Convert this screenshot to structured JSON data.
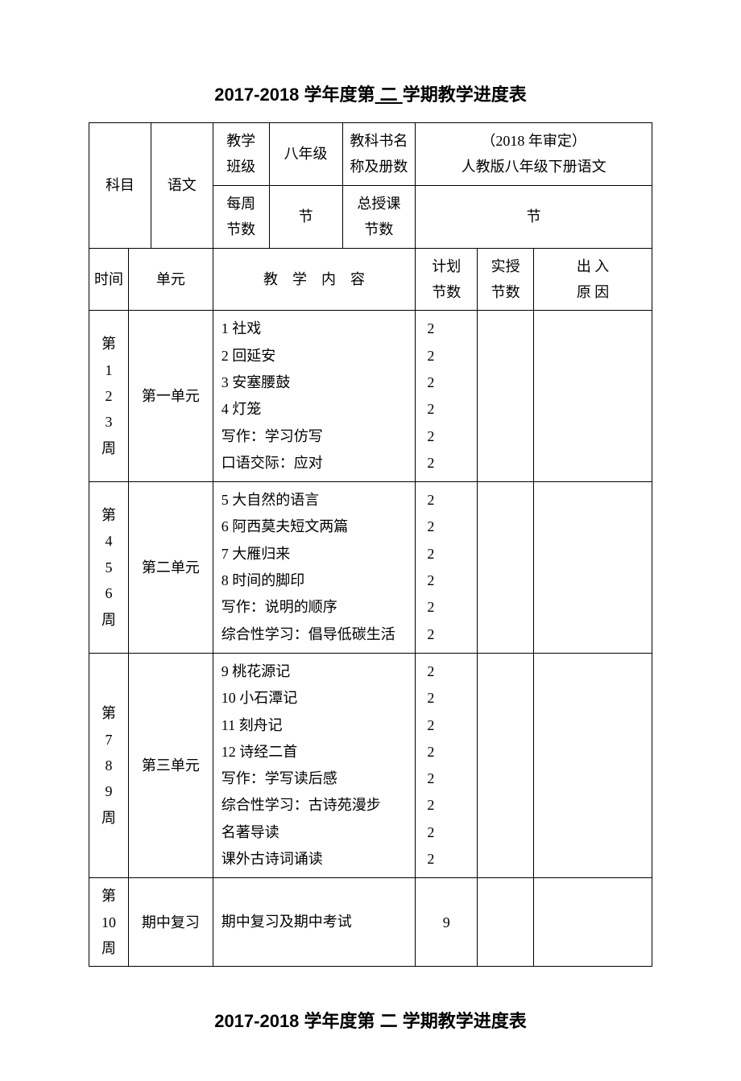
{
  "title_prefix": "2017-2018 学年度第",
  "title_underline": " 二 ",
  "title_suffix": "学期教学进度表",
  "header": {
    "subject_label": "科目",
    "subject_value": "语文",
    "class_label_l1": "教学",
    "class_label_l2": "班级",
    "class_value": "八年级",
    "book_label_l1": "教科书名",
    "book_label_l2": "称及册数",
    "book_value_l1": "（2018 年审定）",
    "book_value_l2": "人教版八年级下册语文",
    "weekly_label_l1": "每周",
    "weekly_label_l2": "节数",
    "weekly_value": "节",
    "total_label_l1": "总授课",
    "total_label_l2": "节数",
    "total_value": "节"
  },
  "subhead": {
    "time": "时间",
    "unit": "单元",
    "content": "教　学　内　容",
    "plan_l1": "计划",
    "plan_l2": "节数",
    "actual_l1": "实授",
    "actual_l2": "节数",
    "reason_l1": "出 入",
    "reason_l2": "原 因"
  },
  "rows": [
    {
      "time": [
        "第",
        "1",
        "2",
        "3",
        "周"
      ],
      "unit": "第一单元",
      "content": [
        "1 社戏",
        "2 回延安",
        "3 安塞腰鼓",
        "4 灯笼",
        "写作：学习仿写",
        "口语交际：应对"
      ],
      "plan": [
        "2",
        "2",
        "2",
        "2",
        "2",
        "2"
      ]
    },
    {
      "time": [
        "第",
        "4",
        "5",
        "6",
        "周"
      ],
      "unit": "第二单元",
      "content": [
        "5 大自然的语言",
        "6 阿西莫夫短文两篇",
        "7 大雁归来",
        "8 时间的脚印",
        "写作：说明的顺序",
        "综合性学习：倡导低碳生活"
      ],
      "plan": [
        "2",
        "2",
        "2",
        "2",
        "2",
        "2"
      ]
    },
    {
      "time": [
        "第",
        "7",
        "8",
        "9",
        "周"
      ],
      "unit": "第三单元",
      "content": [
        "9 桃花源记",
        "10 小石潭记",
        "11 刻舟记",
        "12 诗经二首",
        "写作：学写读后感",
        "综合性学习：古诗苑漫步",
        "名著导读",
        "课外古诗词诵读"
      ],
      "plan": [
        "2",
        "2",
        "2",
        "2",
        "2",
        "2",
        "2",
        "2"
      ]
    },
    {
      "time": [
        "第",
        "10",
        "周"
      ],
      "unit": "期中复习",
      "content": [
        "期中复习及期中考试"
      ],
      "plan": [
        "9"
      ]
    }
  ],
  "style": {
    "page_bg": "#ffffff",
    "text_color": "#000000",
    "border_color": "#000000",
    "title_fontsize": 22,
    "body_fontsize": 18,
    "border_width": 1.5
  }
}
